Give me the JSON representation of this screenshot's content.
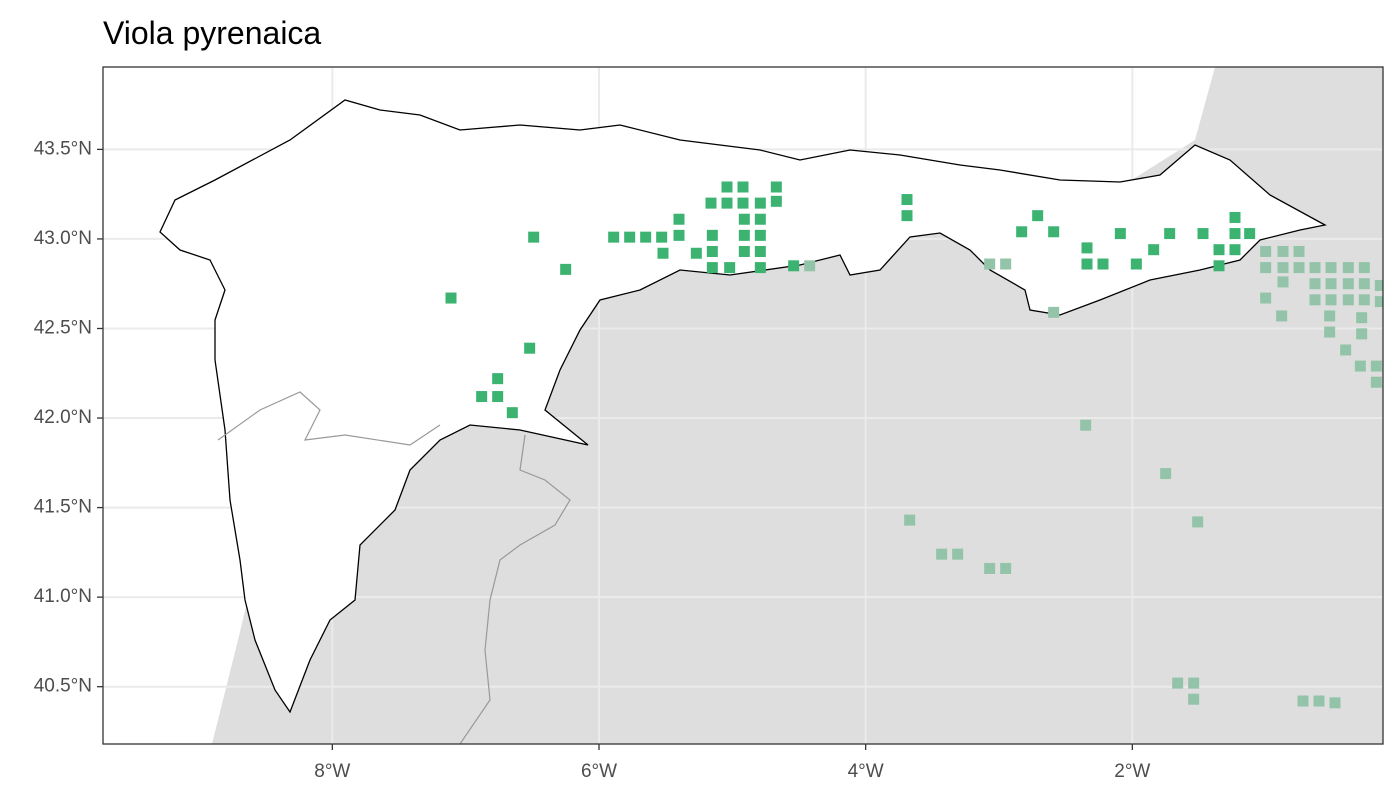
{
  "chart_data": {
    "type": "scatter",
    "title": "Viola pyrenaica",
    "xlim": [
      -9.72,
      -0.12
    ],
    "ylim": [
      40.18,
      43.96
    ],
    "xticks": [
      {
        "value": -8,
        "label": "8°W"
      },
      {
        "value": -6,
        "label": "6°W"
      },
      {
        "value": -4,
        "label": "4°W"
      },
      {
        "value": -2,
        "label": "2°W"
      }
    ],
    "yticks": [
      {
        "value": 40.5,
        "label": "40.5°N"
      },
      {
        "value": 41.0,
        "label": "41.0°N"
      },
      {
        "value": 41.5,
        "label": "41.5°N"
      },
      {
        "value": 42.0,
        "label": "42.0°N"
      },
      {
        "value": 42.5,
        "label": "42.5°N"
      },
      {
        "value": 43.0,
        "label": "43.0°N"
      },
      {
        "value": 43.5,
        "label": "43.5°N"
      }
    ],
    "grid": true,
    "series": [
      {
        "color": "#3cb371",
        "x": [
          -7.11,
          -6.49,
          -6.25,
          -6.52,
          -6.76,
          -6.88,
          -6.76,
          -6.65,
          -5.89,
          -5.77,
          -5.65,
          -5.53,
          -5.52,
          -5.4,
          -5.4,
          -5.27,
          -5.15,
          -5.15,
          -5.15,
          -5.02,
          -5.16,
          -5.04,
          -5.04,
          -4.92,
          -4.92,
          -4.79,
          -4.67,
          -4.67,
          -4.91,
          -4.79,
          -4.91,
          -4.79,
          -4.91,
          -4.79,
          -4.79,
          -4.54,
          -3.69,
          -3.69,
          -2.71,
          -2.83,
          -2.59,
          -2.09,
          -2.34,
          -2.34,
          -2.22,
          -1.97,
          -1.84,
          -1.72,
          -1.47,
          -1.35,
          -1.35,
          -1.23,
          -1.23,
          -1.23,
          -1.12
        ],
        "y": [
          42.67,
          43.01,
          42.83,
          42.39,
          42.22,
          42.12,
          42.12,
          42.03,
          43.01,
          43.01,
          43.01,
          43.01,
          42.92,
          43.11,
          43.02,
          42.92,
          43.02,
          42.93,
          42.84,
          42.84,
          43.2,
          43.2,
          43.29,
          43.29,
          43.2,
          43.2,
          43.29,
          43.21,
          43.11,
          43.11,
          43.02,
          43.02,
          42.93,
          42.93,
          42.84,
          42.85,
          43.22,
          43.13,
          43.13,
          43.04,
          43.04,
          43.03,
          42.95,
          42.86,
          42.86,
          42.86,
          42.94,
          43.03,
          43.03,
          42.94,
          42.85,
          43.12,
          43.03,
          42.94,
          43.03
        ]
      },
      {
        "color": "#93c4a9",
        "x": [
          -4.42,
          -3.07,
          -2.95,
          -2.59,
          -2.35,
          -1.75,
          -1.51,
          -3.67,
          -3.43,
          -3.31,
          -3.07,
          -2.95,
          -1.66,
          -1.54,
          -1.54,
          -0.72,
          -0.6,
          -0.48,
          -1.0,
          -0.87,
          -0.75,
          -1.0,
          -0.87,
          -0.75,
          -0.63,
          -0.51,
          -0.38,
          -0.26,
          -0.87,
          -0.63,
          -0.51,
          -0.38,
          -0.26,
          -0.14,
          -1.0,
          -0.63,
          -0.51,
          -0.38,
          -0.26,
          -0.14,
          -0.88,
          -0.52,
          -0.28,
          -0.52,
          -0.28,
          -0.4,
          -0.29,
          -0.17,
          -0.17
        ],
        "y": [
          42.85,
          42.86,
          42.86,
          42.59,
          41.96,
          41.69,
          41.42,
          41.43,
          41.24,
          41.24,
          41.16,
          41.16,
          40.52,
          40.52,
          40.43,
          40.42,
          40.42,
          40.41,
          42.93,
          42.93,
          42.93,
          42.84,
          42.84,
          42.84,
          42.84,
          42.84,
          42.84,
          42.84,
          42.76,
          42.75,
          42.75,
          42.75,
          42.75,
          42.74,
          42.67,
          42.66,
          42.66,
          42.66,
          42.66,
          42.65,
          42.57,
          42.57,
          42.56,
          42.48,
          42.47,
          42.38,
          42.29,
          42.29,
          42.2
        ]
      }
    ]
  }
}
